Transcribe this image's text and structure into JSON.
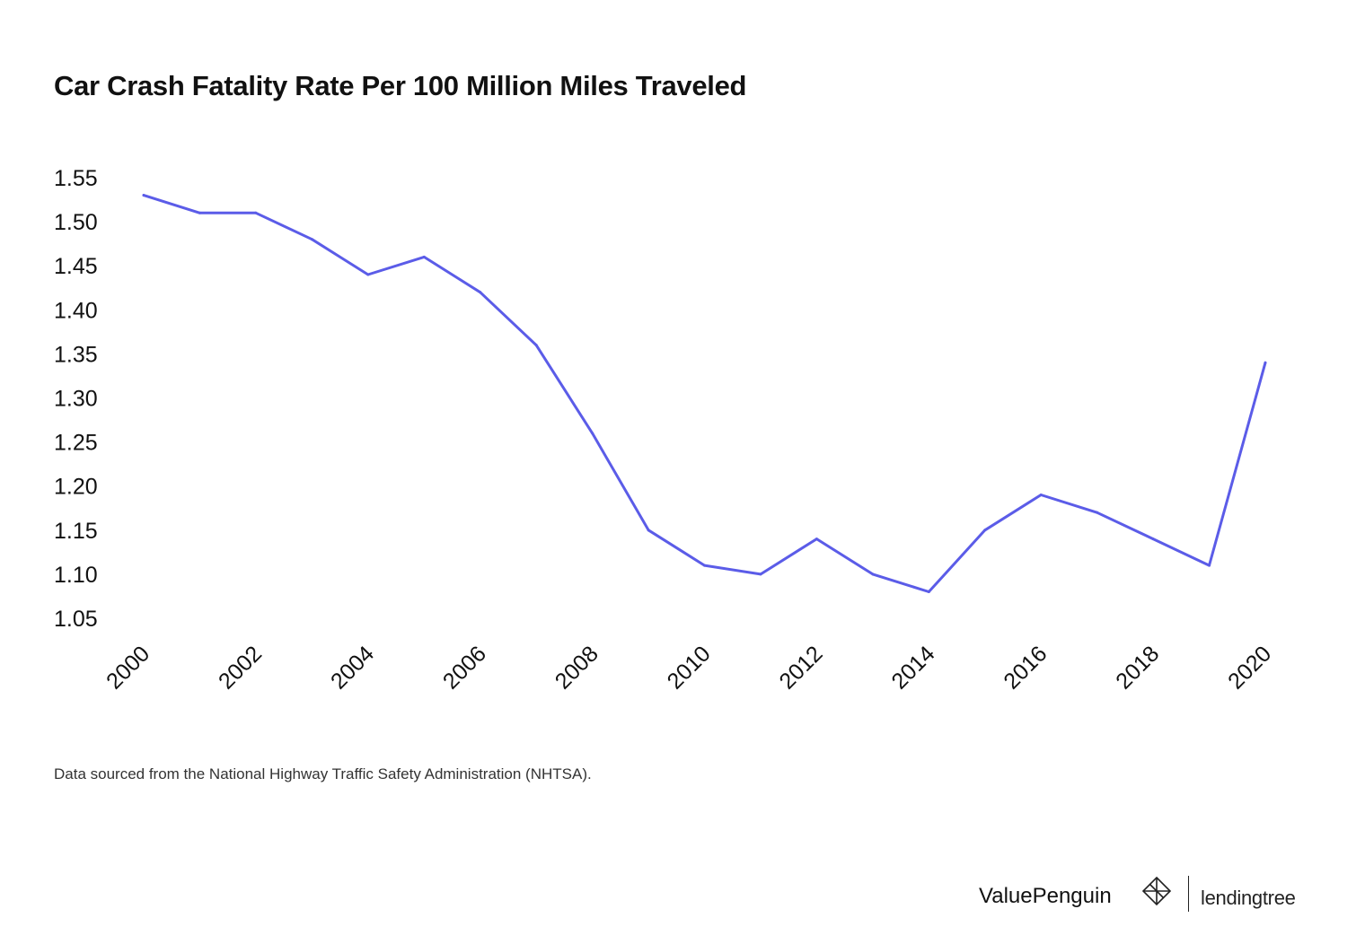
{
  "chart_data": {
    "type": "line",
    "title": "Car Crash Fatality Rate Per 100 Million Miles Traveled",
    "xlabel": "",
    "ylabel": "",
    "x": [
      2000,
      2001,
      2002,
      2003,
      2004,
      2005,
      2006,
      2007,
      2008,
      2009,
      2010,
      2011,
      2012,
      2013,
      2014,
      2015,
      2016,
      2017,
      2018,
      2019,
      2020
    ],
    "series": [
      {
        "name": "Fatality rate",
        "color": "#5b5ce8",
        "values": [
          1.53,
          1.51,
          1.51,
          1.48,
          1.44,
          1.46,
          1.42,
          1.36,
          1.26,
          1.15,
          1.11,
          1.1,
          1.14,
          1.1,
          1.08,
          1.15,
          1.19,
          1.17,
          1.14,
          1.11,
          1.34
        ]
      }
    ],
    "yticks": [
      "1.05",
      "1.10",
      "1.15",
      "1.20",
      "1.25",
      "1.30",
      "1.35",
      "1.40",
      "1.45",
      "1.50",
      "1.55"
    ],
    "xticks": [
      "2000",
      "2002",
      "2004",
      "2006",
      "2008",
      "2010",
      "2012",
      "2014",
      "2016",
      "2018",
      "2020"
    ],
    "ylim": [
      1.05,
      1.55
    ],
    "grid": false,
    "legend": "none"
  },
  "footer": {
    "source_note": "Data sourced from the National Highway Traffic Safety Administration (NHTSA).",
    "brand_primary": "ValuePenguin",
    "brand_secondary": "lendingtree"
  }
}
